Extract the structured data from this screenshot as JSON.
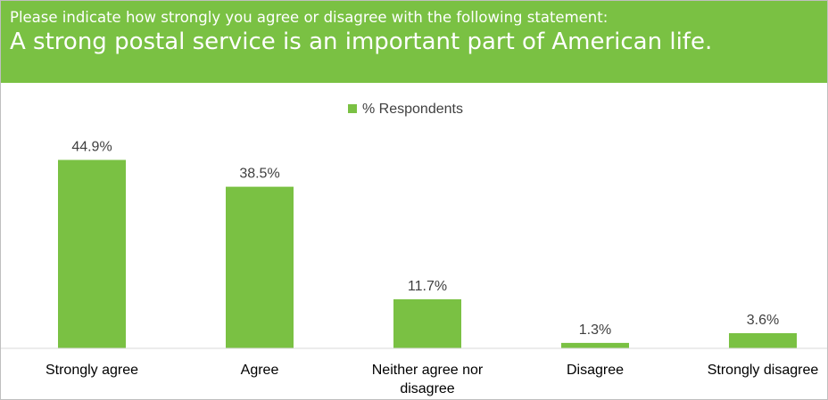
{
  "header": {
    "question": "Please indicate how strongly you agree or disagree with the following statement:",
    "statement": "A strong postal service is an important part of American life."
  },
  "chart_data": {
    "type": "bar",
    "categories": [
      [
        "Strongly agree"
      ],
      [
        "Agree"
      ],
      [
        "Neither agree nor",
        "disagree"
      ],
      [
        "Disagree"
      ],
      [
        "Strongly disagree"
      ]
    ],
    "series": [
      {
        "name": "% Respondents",
        "values": [
          44.9,
          38.5,
          11.7,
          1.3,
          3.6
        ],
        "color": "#7ac143"
      }
    ],
    "value_labels": [
      "44.9%",
      "38.5%",
      "11.7%",
      "1.3%",
      "3.6%"
    ],
    "legend_position": "top-center",
    "grid": false,
    "ylim": [
      0,
      45
    ]
  }
}
